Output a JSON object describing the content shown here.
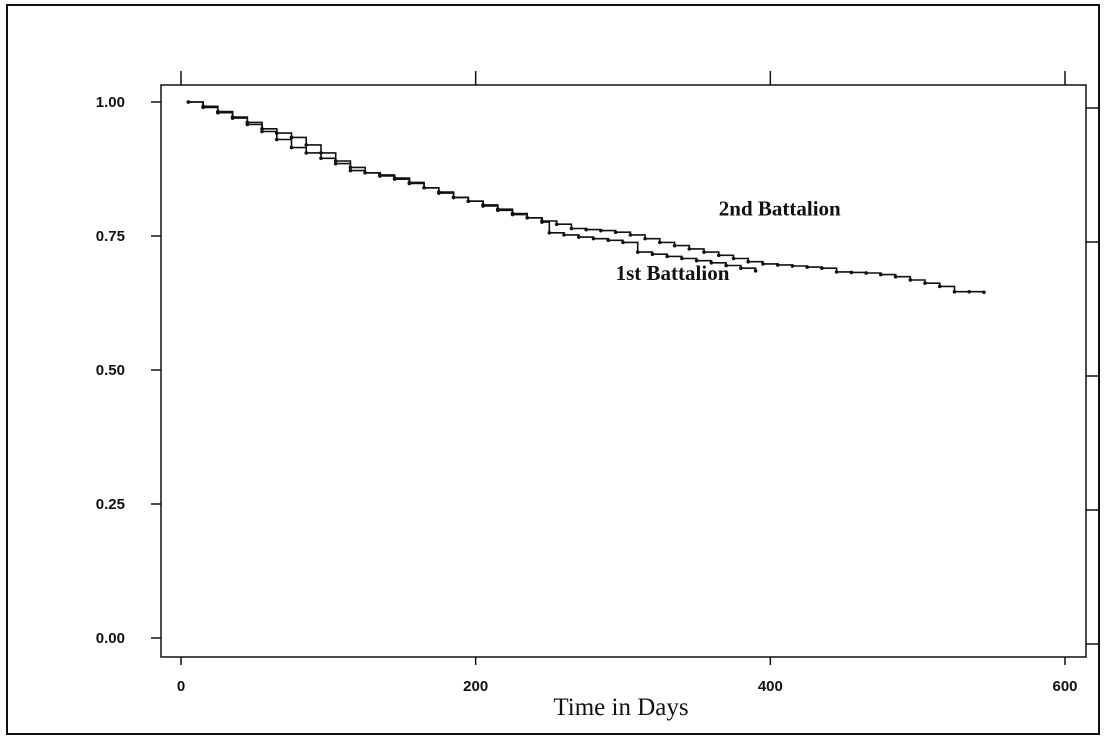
{
  "chart_data": {
    "type": "line",
    "title": "",
    "xlabel": "Time in Days",
    "ylabel": "",
    "xlim": [
      0,
      600
    ],
    "ylim": [
      0,
      1
    ],
    "x_ticks": [
      "0",
      "200",
      "400",
      "600"
    ],
    "y_ticks": [
      "0.00",
      "0.25",
      "0.50",
      "0.75",
      "1.00"
    ],
    "x_tick_values": [
      0,
      200,
      400,
      600
    ],
    "y_tick_values": [
      0,
      0.25,
      0.5,
      0.75,
      1
    ],
    "grid": false,
    "legend": "none",
    "line_color": "#111111",
    "series": [
      {
        "name": "1st Battalion",
        "points": [
          [
            5,
            1.0
          ],
          [
            15,
            0.99
          ],
          [
            25,
            0.98
          ],
          [
            35,
            0.97
          ],
          [
            45,
            0.958
          ],
          [
            55,
            0.945
          ],
          [
            65,
            0.93
          ],
          [
            75,
            0.915
          ],
          [
            85,
            0.905
          ],
          [
            95,
            0.895
          ],
          [
            105,
            0.885
          ],
          [
            115,
            0.872
          ],
          [
            125,
            0.868
          ],
          [
            135,
            0.864
          ],
          [
            145,
            0.858
          ],
          [
            155,
            0.85
          ],
          [
            165,
            0.84
          ],
          [
            175,
            0.832
          ],
          [
            185,
            0.822
          ],
          [
            195,
            0.815
          ],
          [
            205,
            0.808
          ],
          [
            215,
            0.8
          ],
          [
            225,
            0.792
          ],
          [
            235,
            0.784
          ],
          [
            245,
            0.776
          ],
          [
            250,
            0.756
          ],
          [
            260,
            0.752
          ],
          [
            270,
            0.748
          ],
          [
            280,
            0.745
          ],
          [
            290,
            0.742
          ],
          [
            300,
            0.738
          ],
          [
            310,
            0.72
          ],
          [
            320,
            0.716
          ],
          [
            330,
            0.712
          ],
          [
            340,
            0.708
          ],
          [
            350,
            0.704
          ],
          [
            360,
            0.7
          ],
          [
            370,
            0.695
          ],
          [
            380,
            0.69
          ],
          [
            390,
            0.685
          ]
        ]
      },
      {
        "name": "2nd Battalion",
        "points": [
          [
            5,
            1.0
          ],
          [
            15,
            0.992
          ],
          [
            25,
            0.982
          ],
          [
            35,
            0.972
          ],
          [
            45,
            0.962
          ],
          [
            55,
            0.95
          ],
          [
            65,
            0.942
          ],
          [
            75,
            0.934
          ],
          [
            85,
            0.92
          ],
          [
            95,
            0.905
          ],
          [
            105,
            0.89
          ],
          [
            115,
            0.878
          ],
          [
            125,
            0.868
          ],
          [
            135,
            0.862
          ],
          [
            145,
            0.856
          ],
          [
            155,
            0.848
          ],
          [
            165,
            0.84
          ],
          [
            175,
            0.83
          ],
          [
            185,
            0.822
          ],
          [
            195,
            0.815
          ],
          [
            205,
            0.806
          ],
          [
            215,
            0.798
          ],
          [
            225,
            0.79
          ],
          [
            235,
            0.784
          ],
          [
            245,
            0.778
          ],
          [
            255,
            0.772
          ],
          [
            265,
            0.764
          ],
          [
            275,
            0.762
          ],
          [
            285,
            0.76
          ],
          [
            295,
            0.757
          ],
          [
            305,
            0.752
          ],
          [
            315,
            0.745
          ],
          [
            325,
            0.738
          ],
          [
            335,
            0.732
          ],
          [
            345,
            0.726
          ],
          [
            355,
            0.72
          ],
          [
            365,
            0.714
          ],
          [
            375,
            0.708
          ],
          [
            385,
            0.702
          ],
          [
            395,
            0.698
          ],
          [
            405,
            0.696
          ],
          [
            415,
            0.694
          ],
          [
            425,
            0.692
          ],
          [
            435,
            0.69
          ],
          [
            445,
            0.683
          ],
          [
            455,
            0.682
          ],
          [
            465,
            0.681
          ],
          [
            475,
            0.678
          ],
          [
            485,
            0.674
          ],
          [
            495,
            0.668
          ],
          [
            505,
            0.662
          ],
          [
            515,
            0.656
          ],
          [
            525,
            0.646
          ],
          [
            535,
            0.646
          ],
          [
            545,
            0.645
          ]
        ]
      }
    ],
    "annotations": [
      {
        "text": "2nd Battalion",
        "x": 365,
        "y": 0.788
      },
      {
        "text": "1st Battalion",
        "x": 295,
        "y": 0.668
      }
    ]
  }
}
